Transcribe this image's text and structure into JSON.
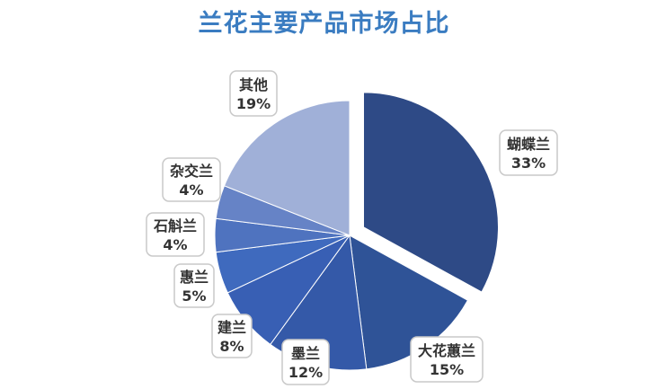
{
  "chart_data": {
    "type": "pie",
    "title": "兰花主要产品市场占比",
    "categories": [
      "蝴蝶兰",
      "大花蕙兰",
      "墨兰",
      "建兰",
      "惠兰",
      "石斛兰",
      "杂交兰",
      "其他"
    ],
    "values": [
      33,
      15,
      12,
      8,
      5,
      4,
      4,
      19
    ],
    "value_labels": [
      "33%",
      "15%",
      "12%",
      "8%",
      "5%",
      "4%",
      "4%",
      "19%"
    ],
    "exploded_category": "蝴蝶兰",
    "start_angle_deg": 0,
    "direction": "clockwise",
    "colors": [
      "#2e4a86",
      "#2f5397",
      "#3459a8",
      "#385fb4",
      "#3f6abe",
      "#4f73bf",
      "#6683c6",
      "#a0b0d8"
    ],
    "title_color": "#3a7cc1",
    "label_text_color": "#333333",
    "legend": "none"
  }
}
